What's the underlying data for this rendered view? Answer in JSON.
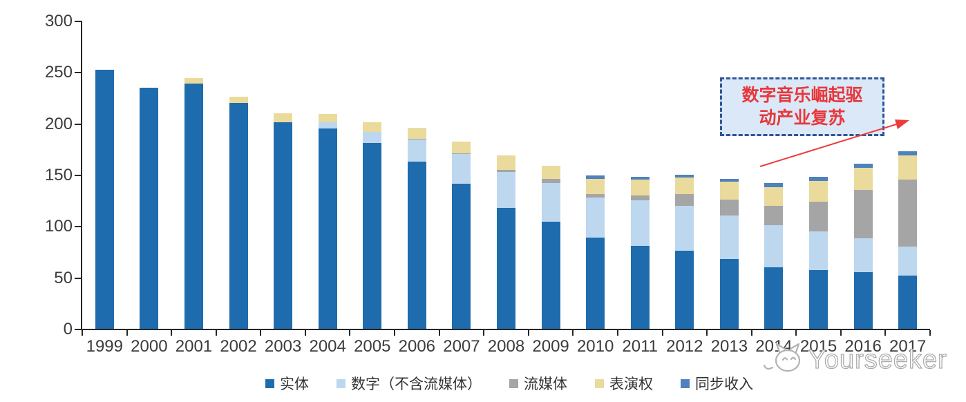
{
  "chart_data": {
    "type": "bar",
    "stacked": true,
    "title": "",
    "xlabel": "",
    "ylabel": "",
    "ylim": [
      0,
      300
    ],
    "yticks": [
      0,
      50,
      100,
      150,
      200,
      250,
      300
    ],
    "grid": false,
    "legend_position": "bottom",
    "categories": [
      "1999",
      "2000",
      "2001",
      "2002",
      "2003",
      "2004",
      "2005",
      "2006",
      "2007",
      "2008",
      "2009",
      "2010",
      "2011",
      "2012",
      "2013",
      "2014",
      "2015",
      "2016",
      "2017"
    ],
    "series": [
      {
        "name": "实体",
        "color": "#1E6CAD",
        "values": [
          252,
          235,
          239,
          220,
          201,
          195,
          181,
          163,
          141,
          118,
          104,
          89,
          81,
          76,
          68,
          60,
          57,
          55,
          52
        ]
      },
      {
        "name": "数字（不含流媒体）",
        "color": "#BDD7EE",
        "values": [
          0,
          0,
          0,
          0,
          0,
          6,
          11,
          21,
          29,
          35,
          38,
          39,
          44,
          44,
          42,
          41,
          38,
          33,
          28
        ]
      },
      {
        "name": "流媒体",
        "color": "#A5A5A5",
        "values": [
          0,
          0,
          0,
          0,
          0,
          0,
          0,
          1,
          1,
          2,
          4,
          3,
          5,
          11,
          16,
          19,
          29,
          47,
          65
        ]
      },
      {
        "name": "表演权",
        "color": "#EADB9C",
        "values": [
          0,
          0,
          5,
          6,
          9,
          8,
          9,
          11,
          11,
          14,
          13,
          15,
          15,
          16,
          17,
          18,
          20,
          22,
          24
        ]
      },
      {
        "name": "同步收入",
        "color": "#4E81BD",
        "values": [
          0,
          0,
          0,
          0,
          0,
          0,
          0,
          0,
          0,
          0,
          0,
          3,
          3,
          3,
          3,
          4,
          4,
          4,
          4
        ]
      }
    ]
  },
  "annotation": {
    "lines": [
      "数字音乐崛起驱",
      "动产业复苏"
    ],
    "text_color": "#E8373B",
    "border_color": "#2F5597",
    "fill_color": "#DBE8F7",
    "arrow_color": "#ED3B3B"
  },
  "watermark": {
    "text": "Yourseeker"
  }
}
